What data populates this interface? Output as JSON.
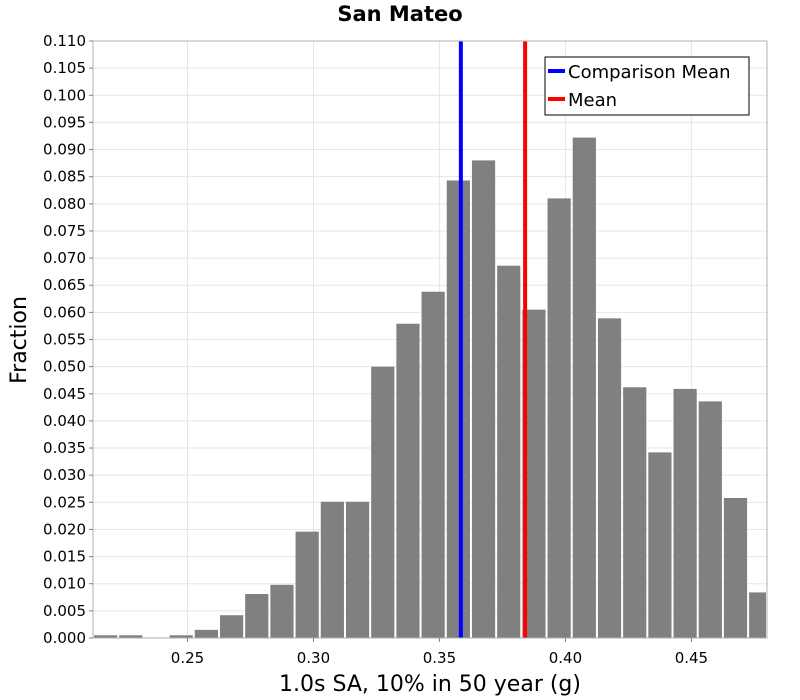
{
  "chart_data": {
    "type": "bar",
    "title": "San Mateo",
    "xlabel": "1.0s SA, 10% in 50 year (g)",
    "ylabel": "Fraction",
    "xlim": [
      0.2125,
      0.48
    ],
    "ylim": [
      0,
      0.11
    ],
    "bin_width": 0.01,
    "x_ticks": [
      {
        "value": 0.25,
        "label": "0.25"
      },
      {
        "value": 0.3,
        "label": "0.30"
      },
      {
        "value": 0.35,
        "label": "0.35"
      },
      {
        "value": 0.4,
        "label": "0.40"
      },
      {
        "value": 0.45,
        "label": "0.45"
      }
    ],
    "y_ticks": [
      {
        "value": 0.0,
        "label": "0.000"
      },
      {
        "value": 0.005,
        "label": "0.005"
      },
      {
        "value": 0.01,
        "label": "0.010"
      },
      {
        "value": 0.015,
        "label": "0.015"
      },
      {
        "value": 0.02,
        "label": "0.020"
      },
      {
        "value": 0.025,
        "label": "0.025"
      },
      {
        "value": 0.03,
        "label": "0.030"
      },
      {
        "value": 0.035,
        "label": "0.035"
      },
      {
        "value": 0.04,
        "label": "0.040"
      },
      {
        "value": 0.045,
        "label": "0.045"
      },
      {
        "value": 0.05,
        "label": "0.050"
      },
      {
        "value": 0.055,
        "label": "0.055"
      },
      {
        "value": 0.06,
        "label": "0.060"
      },
      {
        "value": 0.065,
        "label": "0.065"
      },
      {
        "value": 0.07,
        "label": "0.070"
      },
      {
        "value": 0.075,
        "label": "0.075"
      },
      {
        "value": 0.08,
        "label": "0.080"
      },
      {
        "value": 0.085,
        "label": "0.085"
      },
      {
        "value": 0.09,
        "label": "0.090"
      },
      {
        "value": 0.095,
        "label": "0.095"
      },
      {
        "value": 0.1,
        "label": "0.100"
      },
      {
        "value": 0.105,
        "label": "0.105"
      },
      {
        "value": 0.11,
        "label": "0.110"
      }
    ],
    "bins": [
      {
        "x": 0.2175,
        "value": 0.0005
      },
      {
        "x": 0.2275,
        "value": 0.0005
      },
      {
        "x": 0.2375,
        "value": 0.0001
      },
      {
        "x": 0.2475,
        "value": 0.0005
      },
      {
        "x": 0.2575,
        "value": 0.0015
      },
      {
        "x": 0.2675,
        "value": 0.0042
      },
      {
        "x": 0.2775,
        "value": 0.0081
      },
      {
        "x": 0.2875,
        "value": 0.0098
      },
      {
        "x": 0.2975,
        "value": 0.0196
      },
      {
        "x": 0.3075,
        "value": 0.0251
      },
      {
        "x": 0.3175,
        "value": 0.0251
      },
      {
        "x": 0.3275,
        "value": 0.05
      },
      {
        "x": 0.3375,
        "value": 0.0579
      },
      {
        "x": 0.3475,
        "value": 0.0638
      },
      {
        "x": 0.3575,
        "value": 0.0843
      },
      {
        "x": 0.3675,
        "value": 0.088
      },
      {
        "x": 0.3775,
        "value": 0.0686
      },
      {
        "x": 0.3875,
        "value": 0.0605
      },
      {
        "x": 0.3975,
        "value": 0.081
      },
      {
        "x": 0.4075,
        "value": 0.0922
      },
      {
        "x": 0.4175,
        "value": 0.0589
      },
      {
        "x": 0.4275,
        "value": 0.0462
      },
      {
        "x": 0.4375,
        "value": 0.0342
      },
      {
        "x": 0.4475,
        "value": 0.0459
      },
      {
        "x": 0.4575,
        "value": 0.0436
      },
      {
        "x": 0.4675,
        "value": 0.0258
      },
      {
        "x": 0.4775,
        "value": 0.0084
      }
    ],
    "bar_color": "#808080",
    "vertical_lines": [
      {
        "name": "Comparison Mean",
        "x": 0.3585,
        "color": "#0000ff"
      },
      {
        "name": "Mean",
        "x": 0.384,
        "color": "#ff0000"
      }
    ],
    "legend": {
      "position": "top-right",
      "entries": [
        {
          "label": "Comparison Mean",
          "color": "#0000ff"
        },
        {
          "label": "Mean",
          "color": "#ff0000"
        }
      ]
    },
    "grid": true
  }
}
